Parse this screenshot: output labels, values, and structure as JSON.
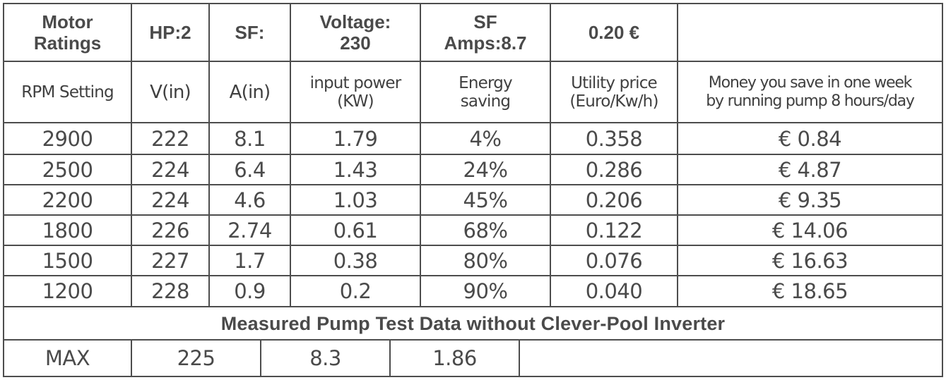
{
  "ratings": {
    "motor_ratings": "Motor\nRatings",
    "hp": "HP:2",
    "sf": "SF:",
    "voltage": "Voltage:\n230",
    "sf_amps": "SF\nAmps:8.7",
    "price": "0.20 €"
  },
  "columns": {
    "rpm": "RPM Setting",
    "v_in": "V(in)",
    "a_in": "A(in)",
    "input_power": "input power\n(KW)",
    "energy_saving": "Energy\nsaving",
    "utility_price": "Utility price\n(Euro/Kw/h)",
    "money_saved": "Money you save in one week\nby running pump 8 hours/day"
  },
  "rows": [
    [
      "2900",
      "222",
      "8.1",
      "1.79",
      "4%",
      "0.358",
      "€ 0.84"
    ],
    [
      "2500",
      "224",
      "6.4",
      "1.43",
      "24%",
      "0.286",
      "€ 4.87"
    ],
    [
      "2200",
      "224",
      "4.6",
      "1.03",
      "45%",
      "0.206",
      "€ 9.35"
    ],
    [
      "1800",
      "226",
      "2.74",
      "0.61",
      "68%",
      "0.122",
      "€ 14.06"
    ],
    [
      "1500",
      "227",
      "1.7",
      "0.38",
      "80%",
      "0.076",
      "€ 16.63"
    ],
    [
      "1200",
      "228",
      "0.9",
      "0.2",
      "90%",
      "0.040",
      "€ 18.65"
    ]
  ],
  "measured": {
    "caption": "Measured Pump Test Data without Clever-Pool Inverter",
    "label": "MAX",
    "voltage": "225",
    "amps": "8.3",
    "power": "1.86"
  }
}
